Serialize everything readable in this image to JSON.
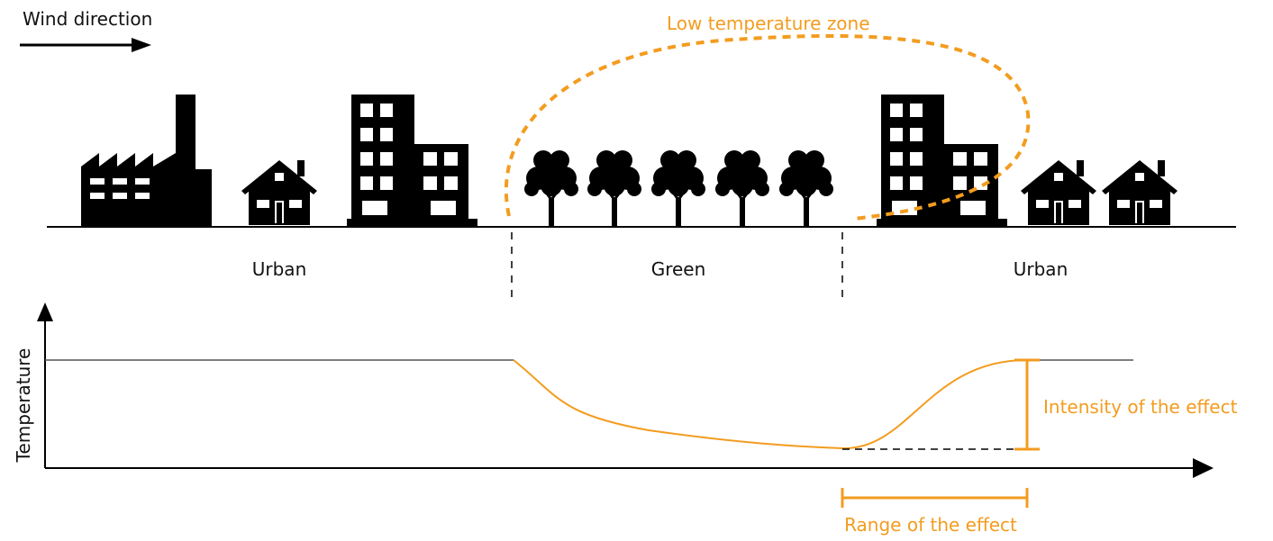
{
  "wind_label": "Wind direction",
  "zone_label": "Low temperature zone",
  "areas": [
    "Urban",
    "Green",
    "Urban"
  ],
  "y_axis_label": "Temperature",
  "intensity_label": "Intensity of the effect",
  "range_label": "Range of the effect"
}
